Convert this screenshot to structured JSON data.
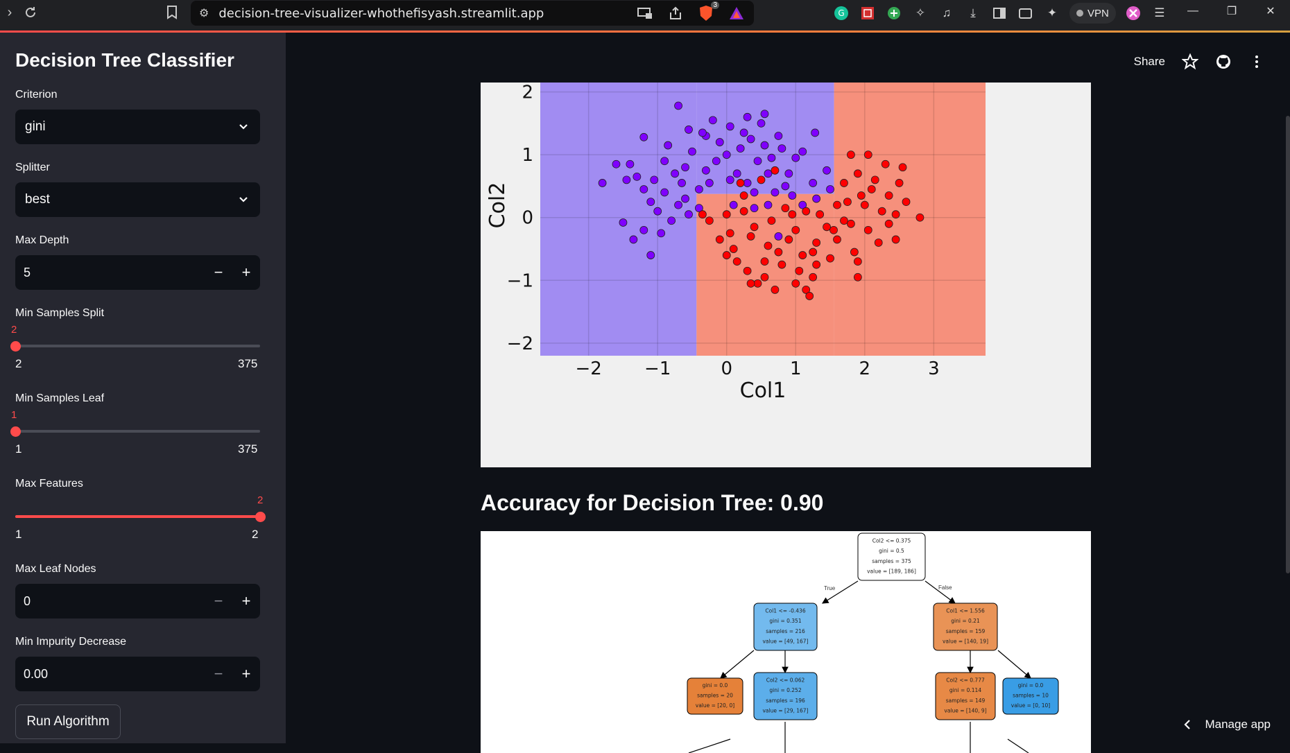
{
  "browser": {
    "url": "decision-tree-visualizer-whothefisyash.streamlit.app",
    "brave_badge": "3",
    "vpn_label": "VPN"
  },
  "sidebar": {
    "title": "Decision Tree Classifier",
    "criterion": {
      "label": "Criterion",
      "value": "gini"
    },
    "splitter": {
      "label": "Splitter",
      "value": "best"
    },
    "max_depth": {
      "label": "Max Depth",
      "value": "5"
    },
    "min_samples_split": {
      "label": "Min Samples Split",
      "value": 2,
      "current": "2",
      "min": "2",
      "max": "375"
    },
    "min_samples_leaf": {
      "label": "Min Samples Leaf",
      "value": 1,
      "current": "1",
      "min": "1",
      "max": "375"
    },
    "max_features": {
      "label": "Max Features",
      "value": 2,
      "current": "2",
      "min": "1",
      "max": "2"
    },
    "max_leaf_nodes": {
      "label": "Max Leaf Nodes",
      "value": "0"
    },
    "min_impurity_decrease": {
      "label": "Min Impurity Decrease",
      "value": "0.00"
    },
    "run_button": "Run Algorithm"
  },
  "main": {
    "share_label": "Share",
    "accuracy_text": "Accuracy for Decision Tree: 0.90",
    "manage_app": "Manage app"
  },
  "colors": {
    "accent": "#ff4b4b",
    "class0_region": "#a18cf2",
    "class1_region": "#f6907c",
    "class0_point": "#7f00ff",
    "class1_point": "#ff0000",
    "node_blue": "#6fb8ee",
    "node_orange": "#e89150"
  },
  "chart_data": {
    "type": "scatter",
    "xlabel": "Col1",
    "ylabel": "Col2",
    "xlim": [
      -2.7,
      3.75
    ],
    "ylim": [
      -2.2,
      2.15
    ],
    "xticks": [
      -2,
      -1,
      0,
      1,
      2,
      3
    ],
    "yticks": [
      -2,
      -1,
      0,
      1,
      2
    ],
    "xtick_labels": [
      "−2",
      "−1",
      "0",
      "1",
      "2",
      "3"
    ],
    "ytick_labels": [
      "−2",
      "−1",
      "0",
      "1",
      "2"
    ],
    "grid": true,
    "decision_regions": [
      {
        "class": 0,
        "x": [
          -2.7,
          -0.436
        ],
        "y": [
          -2.2,
          2.15
        ]
      },
      {
        "class": 0,
        "x": [
          -0.436,
          1.556
        ],
        "y": [
          0.375,
          2.15
        ]
      },
      {
        "class": 1,
        "x": [
          -0.436,
          1.556
        ],
        "y": [
          -2.2,
          0.375
        ]
      },
      {
        "class": 1,
        "x": [
          1.556,
          3.75
        ],
        "y": [
          -2.2,
          2.15
        ]
      }
    ],
    "series": [
      {
        "class": 0,
        "points": [
          [
            -0.7,
            1.78
          ],
          [
            -1.2,
            1.28
          ],
          [
            1.28,
            1.35
          ],
          [
            0.55,
            1.65
          ],
          [
            0.5,
            1.5
          ],
          [
            0.3,
            1.6
          ],
          [
            -0.55,
            1.4
          ],
          [
            -0.3,
            1.3
          ],
          [
            0.05,
            1.45
          ],
          [
            0.8,
            1.1
          ],
          [
            1.0,
            0.95
          ],
          [
            -0.1,
            1.2
          ],
          [
            0.2,
            1.1
          ],
          [
            -0.9,
            0.9
          ],
          [
            -1.6,
            0.85
          ],
          [
            -1.4,
            0.85
          ],
          [
            -1.8,
            0.55
          ],
          [
            -1.3,
            0.65
          ],
          [
            -1.05,
            0.6
          ],
          [
            -0.6,
            0.8
          ],
          [
            -0.3,
            0.75
          ],
          [
            -0.4,
            0.45
          ],
          [
            -0.15,
            0.9
          ],
          [
            0.45,
            0.9
          ],
          [
            0.9,
            0.7
          ],
          [
            1.25,
            0.55
          ],
          [
            1.45,
            0.75
          ],
          [
            0.7,
            0.4
          ],
          [
            0.3,
            0.55
          ],
          [
            -0.9,
            0.4
          ],
          [
            -1.2,
            0.45
          ],
          [
            -0.7,
            0.2
          ],
          [
            -1.0,
            0.1
          ],
          [
            -0.55,
            0.05
          ],
          [
            -0.8,
            -0.05
          ],
          [
            -1.5,
            -0.08
          ],
          [
            -1.2,
            -0.2
          ],
          [
            -1.35,
            -0.35
          ],
          [
            -1.1,
            -0.6
          ],
          [
            -0.95,
            -0.25
          ],
          [
            -0.6,
            0.3
          ],
          [
            0.1,
            0.2
          ],
          [
            0.4,
            0.15
          ],
          [
            0.95,
            0.35
          ],
          [
            1.1,
            0.2
          ],
          [
            1.3,
            0.3
          ],
          [
            0.6,
            0.2
          ],
          [
            -0.25,
            0.55
          ],
          [
            0.15,
            0.7
          ],
          [
            0.6,
            0.7
          ],
          [
            -1.1,
            0.25
          ],
          [
            -0.5,
            1.05
          ],
          [
            0.0,
            1.0
          ],
          [
            0.35,
            1.25
          ],
          [
            0.75,
            1.3
          ],
          [
            -0.85,
            1.15
          ],
          [
            1.1,
            1.05
          ],
          [
            -0.2,
            1.55
          ],
          [
            0.25,
            1.35
          ],
          [
            0.65,
            0.95
          ],
          [
            -0.65,
            0.55
          ],
          [
            -0.4,
            0.15
          ],
          [
            0.85,
            0.5
          ],
          [
            1.5,
            0.45
          ],
          [
            -0.75,
            0.7
          ],
          [
            0.55,
            1.15
          ],
          [
            -1.45,
            0.6
          ],
          [
            -0.35,
            1.35
          ],
          [
            0.05,
            0.6
          ],
          [
            0.4,
            0.4
          ],
          [
            0.75,
            -0.3
          ]
        ]
      },
      {
        "class": 1,
        "points": [
          [
            1.8,
            1.0
          ],
          [
            2.05,
            1.0
          ],
          [
            2.3,
            0.85
          ],
          [
            2.55,
            0.8
          ],
          [
            2.5,
            0.55
          ],
          [
            1.9,
            0.7
          ],
          [
            1.7,
            0.55
          ],
          [
            2.1,
            0.45
          ],
          [
            2.35,
            0.35
          ],
          [
            2.0,
            0.2
          ],
          [
            2.25,
            0.1
          ],
          [
            2.45,
            0.05
          ],
          [
            1.6,
            0.2
          ],
          [
            1.8,
            -0.1
          ],
          [
            2.05,
            -0.2
          ],
          [
            2.35,
            -0.1
          ],
          [
            2.8,
            0.0
          ],
          [
            2.2,
            -0.4
          ],
          [
            1.85,
            -0.55
          ],
          [
            1.6,
            -0.35
          ],
          [
            1.3,
            -0.4
          ],
          [
            1.5,
            -0.65
          ],
          [
            1.9,
            -0.7
          ],
          [
            1.1,
            -0.6
          ],
          [
            0.9,
            -0.35
          ],
          [
            0.6,
            -0.45
          ],
          [
            0.35,
            -0.3
          ],
          [
            0.1,
            -0.5
          ],
          [
            0.0,
            -0.6
          ],
          [
            0.3,
            -0.85
          ],
          [
            0.55,
            -0.95
          ],
          [
            0.8,
            -0.75
          ],
          [
            1.05,
            -0.85
          ],
          [
            1.25,
            -0.95
          ],
          [
            1.3,
            -0.75
          ],
          [
            0.7,
            -1.15
          ],
          [
            0.45,
            -1.05
          ],
          [
            0.35,
            -1.05
          ],
          [
            1.0,
            -1.05
          ],
          [
            1.15,
            -1.15
          ],
          [
            1.2,
            -1.25
          ],
          [
            0.4,
            -0.15
          ],
          [
            0.65,
            -0.05
          ],
          [
            0.95,
            0.05
          ],
          [
            1.15,
            0.1
          ],
          [
            1.35,
            0.05
          ],
          [
            1.45,
            -0.15
          ],
          [
            0.25,
            0.1
          ],
          [
            0.0,
            0.05
          ],
          [
            -0.35,
            0.05
          ],
          [
            -0.25,
            -0.05
          ],
          [
            0.05,
            -0.25
          ],
          [
            0.75,
            -0.55
          ],
          [
            1.0,
            -0.2
          ],
          [
            1.7,
            -0.05
          ],
          [
            2.45,
            -0.35
          ],
          [
            1.9,
            -0.95
          ],
          [
            1.25,
            -0.55
          ],
          [
            0.25,
            0.35
          ],
          [
            0.5,
            0.6
          ],
          [
            1.75,
            0.25
          ],
          [
            2.15,
            0.6
          ],
          [
            0.85,
            0.15
          ],
          [
            0.55,
            -0.7
          ],
          [
            -0.1,
            -0.35
          ],
          [
            0.15,
            -0.7
          ],
          [
            1.55,
            -0.2
          ],
          [
            2.6,
            0.25
          ],
          [
            1.95,
            0.35
          ],
          [
            0.7,
            0.75
          ],
          [
            0.2,
            0.55
          ]
        ]
      }
    ]
  },
  "tree": {
    "branch_labels": {
      "true": "True",
      "false": "False"
    },
    "nodes": [
      {
        "id": "root",
        "lines": [
          "Col2 <= 0.375",
          "gini = 0.5",
          "samples = 375",
          "value = [189, 186]"
        ],
        "fill": "#ffffff"
      },
      {
        "id": "n1",
        "lines": [
          "Col1 <= -0.436",
          "gini = 0.351",
          "samples = 216",
          "value = [49, 167]"
        ],
        "fill": "#73baee"
      },
      {
        "id": "n2",
        "lines": [
          "Col1 <= 1.556",
          "gini = 0.21",
          "samples = 159",
          "value = [140, 19]"
        ],
        "fill": "#e99356"
      },
      {
        "id": "n3",
        "lines": [
          "gini = 0.0",
          "samples = 20",
          "value = [20, 0]"
        ],
        "fill": "#e58139"
      },
      {
        "id": "n4",
        "lines": [
          "Col2 <= 0.062",
          "gini = 0.252",
          "samples = 196",
          "value = [29, 167]"
        ],
        "fill": "#5caeea"
      },
      {
        "id": "n5",
        "lines": [
          "Col2 <= 0.777",
          "gini = 0.114",
          "samples = 149",
          "value = [140, 9]"
        ],
        "fill": "#e78946"
      },
      {
        "id": "n6",
        "lines": [
          "gini = 0.0",
          "samples = 10",
          "value = [0, 10]"
        ],
        "fill": "#399de5"
      }
    ]
  }
}
